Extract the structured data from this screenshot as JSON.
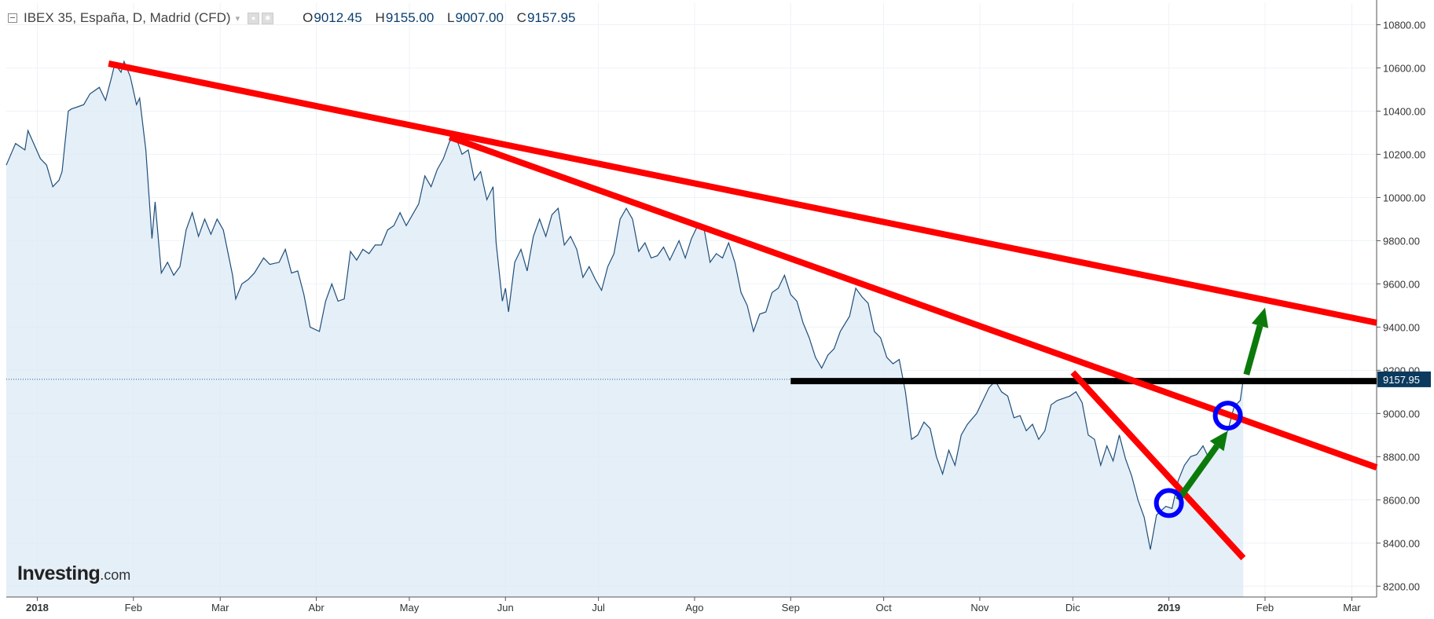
{
  "header": {
    "title": "IBEX 35, España, D, Madrid (CFD)",
    "dropdown": "▾",
    "open_label": "O",
    "open": "9012.45",
    "high_label": "H",
    "high": "9155.00",
    "low_label": "L",
    "low": "9007.00",
    "close_label": "C",
    "close": "9157.95"
  },
  "logo": {
    "brand": "Investing",
    "suffix": ".com"
  },
  "colors": {
    "area_fill": "#dce9f5",
    "price_line": "#1f4e79",
    "trendline": "#ff0000",
    "support": "#000000",
    "arrows": "#0b7a0b",
    "circles": "#0000ff",
    "price_tag": "#0b3a5e"
  },
  "chart_data": {
    "type": "area",
    "title": "IBEX 35, España, D, Madrid (CFD)",
    "xlabel": "",
    "ylabel": "",
    "ylim": [
      8150,
      10900
    ],
    "y_ticks": [
      8200,
      8400,
      8600,
      8800,
      9000,
      9200,
      9400,
      9600,
      9800,
      10000,
      10200,
      10400,
      10600,
      10800
    ],
    "y_tick_labels": [
      "8200.00",
      "8400.00",
      "8600.00",
      "8800.00",
      "9000.00",
      "9200.00",
      "9400.00",
      "9600.00",
      "9800.00",
      "10000.00",
      "10200.00",
      "10400.00",
      "10600.00",
      "10800.00"
    ],
    "x_ticks": [
      {
        "label": "2018",
        "date": "2018-01-01",
        "bold": true
      },
      {
        "label": "Feb",
        "date": "2018-02-01"
      },
      {
        "label": "Mar",
        "date": "2018-03-01"
      },
      {
        "label": "Abr",
        "date": "2018-04-01"
      },
      {
        "label": "May",
        "date": "2018-05-01"
      },
      {
        "label": "Jun",
        "date": "2018-06-01"
      },
      {
        "label": "Jul",
        "date": "2018-07-01"
      },
      {
        "label": "Ago",
        "date": "2018-08-01"
      },
      {
        "label": "Sep",
        "date": "2018-09-01"
      },
      {
        "label": "Oct",
        "date": "2018-10-01"
      },
      {
        "label": "Nov",
        "date": "2018-11-01"
      },
      {
        "label": "Dic",
        "date": "2018-12-01"
      },
      {
        "label": "2019",
        "date": "2019-01-01",
        "bold": true
      },
      {
        "label": "Feb",
        "date": "2019-02-01"
      },
      {
        "label": "Mar",
        "date": "2019-03-01"
      }
    ],
    "xlim": [
      "2017-12-22",
      "2019-03-09"
    ],
    "grid": true,
    "last_price": 9157.95,
    "last_price_label": "9157.95",
    "series": [
      {
        "values": [
          [
            "2017-12-22",
            10150
          ],
          [
            "2017-12-25",
            10250
          ],
          [
            "2017-12-28",
            10220
          ],
          [
            "2017-12-29",
            10310
          ],
          [
            "2018-01-02",
            10180
          ],
          [
            "2018-01-04",
            10150
          ],
          [
            "2018-01-06",
            10050
          ],
          [
            "2018-01-08",
            10080
          ],
          [
            "2018-01-09",
            10120
          ],
          [
            "2018-01-11",
            10400
          ],
          [
            "2018-01-12",
            10410
          ],
          [
            "2018-01-14",
            10420
          ],
          [
            "2018-01-16",
            10430
          ],
          [
            "2018-01-18",
            10480
          ],
          [
            "2018-01-21",
            10510
          ],
          [
            "2018-01-23",
            10450
          ],
          [
            "2018-01-25",
            10560
          ],
          [
            "2018-01-26",
            10620
          ],
          [
            "2018-01-28",
            10580
          ],
          [
            "2018-01-29",
            10630
          ],
          [
            "2018-01-31",
            10560
          ],
          [
            "2018-02-02",
            10430
          ],
          [
            "2018-02-03",
            10460
          ],
          [
            "2018-02-05",
            10220
          ],
          [
            "2018-02-07",
            9810
          ],
          [
            "2018-02-08",
            9980
          ],
          [
            "2018-02-10",
            9650
          ],
          [
            "2018-02-12",
            9700
          ],
          [
            "2018-02-14",
            9640
          ],
          [
            "2018-02-16",
            9680
          ],
          [
            "2018-02-18",
            9850
          ],
          [
            "2018-02-20",
            9930
          ],
          [
            "2018-02-22",
            9820
          ],
          [
            "2018-02-24",
            9900
          ],
          [
            "2018-02-26",
            9830
          ],
          [
            "2018-02-28",
            9900
          ],
          [
            "2018-03-02",
            9850
          ],
          [
            "2018-03-05",
            9640
          ],
          [
            "2018-03-06",
            9530
          ],
          [
            "2018-03-08",
            9600
          ],
          [
            "2018-03-10",
            9620
          ],
          [
            "2018-03-12",
            9650
          ],
          [
            "2018-03-15",
            9720
          ],
          [
            "2018-03-17",
            9690
          ],
          [
            "2018-03-20",
            9700
          ],
          [
            "2018-03-22",
            9760
          ],
          [
            "2018-03-24",
            9650
          ],
          [
            "2018-03-26",
            9660
          ],
          [
            "2018-03-28",
            9550
          ],
          [
            "2018-03-30",
            9400
          ],
          [
            "2018-04-02",
            9380
          ],
          [
            "2018-04-04",
            9520
          ],
          [
            "2018-04-06",
            9600
          ],
          [
            "2018-04-08",
            9520
          ],
          [
            "2018-04-10",
            9530
          ],
          [
            "2018-04-12",
            9750
          ],
          [
            "2018-04-14",
            9710
          ],
          [
            "2018-04-16",
            9760
          ],
          [
            "2018-04-18",
            9740
          ],
          [
            "2018-04-20",
            9780
          ],
          [
            "2018-04-22",
            9780
          ],
          [
            "2018-04-24",
            9850
          ],
          [
            "2018-04-26",
            9870
          ],
          [
            "2018-04-28",
            9930
          ],
          [
            "2018-04-30",
            9870
          ],
          [
            "2018-05-02",
            9920
          ],
          [
            "2018-05-04",
            9970
          ],
          [
            "2018-05-06",
            10100
          ],
          [
            "2018-05-08",
            10050
          ],
          [
            "2018-05-10",
            10130
          ],
          [
            "2018-05-12",
            10180
          ],
          [
            "2018-05-14",
            10260
          ],
          [
            "2018-05-16",
            10280
          ],
          [
            "2018-05-18",
            10200
          ],
          [
            "2018-05-20",
            10220
          ],
          [
            "2018-05-22",
            10080
          ],
          [
            "2018-05-24",
            10120
          ],
          [
            "2018-05-26",
            9990
          ],
          [
            "2018-05-28",
            10050
          ],
          [
            "2018-05-29",
            9790
          ],
          [
            "2018-05-31",
            9520
          ],
          [
            "2018-06-01",
            9580
          ],
          [
            "2018-06-02",
            9470
          ],
          [
            "2018-06-04",
            9700
          ],
          [
            "2018-06-06",
            9760
          ],
          [
            "2018-06-08",
            9660
          ],
          [
            "2018-06-10",
            9820
          ],
          [
            "2018-06-12",
            9900
          ],
          [
            "2018-06-14",
            9820
          ],
          [
            "2018-06-16",
            9920
          ],
          [
            "2018-06-18",
            9950
          ],
          [
            "2018-06-20",
            9780
          ],
          [
            "2018-06-22",
            9820
          ],
          [
            "2018-06-24",
            9760
          ],
          [
            "2018-06-26",
            9630
          ],
          [
            "2018-06-28",
            9680
          ],
          [
            "2018-06-30",
            9620
          ],
          [
            "2018-07-02",
            9570
          ],
          [
            "2018-07-04",
            9680
          ],
          [
            "2018-07-06",
            9740
          ],
          [
            "2018-07-08",
            9900
          ],
          [
            "2018-07-10",
            9950
          ],
          [
            "2018-07-12",
            9900
          ],
          [
            "2018-07-14",
            9750
          ],
          [
            "2018-07-16",
            9790
          ],
          [
            "2018-07-18",
            9720
          ],
          [
            "2018-07-20",
            9730
          ],
          [
            "2018-07-22",
            9770
          ],
          [
            "2018-07-24",
            9710
          ],
          [
            "2018-07-27",
            9800
          ],
          [
            "2018-07-29",
            9720
          ],
          [
            "2018-07-31",
            9810
          ],
          [
            "2018-08-02",
            9870
          ],
          [
            "2018-08-04",
            9860
          ],
          [
            "2018-08-06",
            9700
          ],
          [
            "2018-08-08",
            9740
          ],
          [
            "2018-08-10",
            9720
          ],
          [
            "2018-08-12",
            9790
          ],
          [
            "2018-08-14",
            9700
          ],
          [
            "2018-08-16",
            9560
          ],
          [
            "2018-08-18",
            9500
          ],
          [
            "2018-08-20",
            9380
          ],
          [
            "2018-08-22",
            9460
          ],
          [
            "2018-08-24",
            9470
          ],
          [
            "2018-08-26",
            9560
          ],
          [
            "2018-08-28",
            9580
          ],
          [
            "2018-08-30",
            9640
          ],
          [
            "2018-09-01",
            9550
          ],
          [
            "2018-09-03",
            9520
          ],
          [
            "2018-09-05",
            9420
          ],
          [
            "2018-09-07",
            9350
          ],
          [
            "2018-09-09",
            9260
          ],
          [
            "2018-09-11",
            9210
          ],
          [
            "2018-09-13",
            9270
          ],
          [
            "2018-09-15",
            9300
          ],
          [
            "2018-09-17",
            9380
          ],
          [
            "2018-09-20",
            9450
          ],
          [
            "2018-09-22",
            9580
          ],
          [
            "2018-09-24",
            9540
          ],
          [
            "2018-09-26",
            9510
          ],
          [
            "2018-09-28",
            9380
          ],
          [
            "2018-09-30",
            9350
          ],
          [
            "2018-10-02",
            9260
          ],
          [
            "2018-10-04",
            9230
          ],
          [
            "2018-10-06",
            9250
          ],
          [
            "2018-10-08",
            9100
          ],
          [
            "2018-10-10",
            8880
          ],
          [
            "2018-10-12",
            8900
          ],
          [
            "2018-10-14",
            8960
          ],
          [
            "2018-10-16",
            8930
          ],
          [
            "2018-10-18",
            8800
          ],
          [
            "2018-10-20",
            8720
          ],
          [
            "2018-10-22",
            8830
          ],
          [
            "2018-10-24",
            8760
          ],
          [
            "2018-10-26",
            8900
          ],
          [
            "2018-10-28",
            8950
          ],
          [
            "2018-10-31",
            9000
          ],
          [
            "2018-11-02",
            9060
          ],
          [
            "2018-11-04",
            9120
          ],
          [
            "2018-11-06",
            9150
          ],
          [
            "2018-11-08",
            9100
          ],
          [
            "2018-11-10",
            9080
          ],
          [
            "2018-11-12",
            8980
          ],
          [
            "2018-11-14",
            8990
          ],
          [
            "2018-11-16",
            8920
          ],
          [
            "2018-11-18",
            8950
          ],
          [
            "2018-11-20",
            8880
          ],
          [
            "2018-11-22",
            8920
          ],
          [
            "2018-11-24",
            9040
          ],
          [
            "2018-11-26",
            9060
          ],
          [
            "2018-11-28",
            9070
          ],
          [
            "2018-11-30",
            9080
          ],
          [
            "2018-12-02",
            9100
          ],
          [
            "2018-12-04",
            9050
          ],
          [
            "2018-12-06",
            8900
          ],
          [
            "2018-12-08",
            8880
          ],
          [
            "2018-12-10",
            8760
          ],
          [
            "2018-12-12",
            8850
          ],
          [
            "2018-12-14",
            8780
          ],
          [
            "2018-12-16",
            8900
          ],
          [
            "2018-12-18",
            8790
          ],
          [
            "2018-12-20",
            8710
          ],
          [
            "2018-12-22",
            8600
          ],
          [
            "2018-12-24",
            8520
          ],
          [
            "2018-12-26",
            8370
          ],
          [
            "2018-12-28",
            8530
          ],
          [
            "2018-12-31",
            8570
          ],
          [
            "2019-01-02",
            8560
          ],
          [
            "2019-01-04",
            8690
          ],
          [
            "2019-01-06",
            8760
          ],
          [
            "2019-01-08",
            8800
          ],
          [
            "2019-01-10",
            8810
          ],
          [
            "2019-01-12",
            8850
          ],
          [
            "2019-01-14",
            8790
          ],
          [
            "2019-01-16",
            8840
          ],
          [
            "2019-01-18",
            8880
          ],
          [
            "2019-01-20",
            8920
          ],
          [
            "2019-01-22",
            9030
          ],
          [
            "2019-01-24",
            9060
          ],
          [
            "2019-01-25",
            9157.95
          ]
        ]
      }
    ],
    "annotations": {
      "trendlines": [
        {
          "from": [
            "2018-01-24",
            10620
          ],
          "to": [
            "2019-03-09",
            9420
          ]
        },
        {
          "from": [
            "2018-05-14",
            10280
          ],
          "to": [
            "2019-03-09",
            8750
          ]
        },
        {
          "from": [
            "2018-12-01",
            9190
          ],
          "to": [
            "2019-01-25",
            8330
          ]
        }
      ],
      "support_line": {
        "from": [
          "2018-09-01",
          9150
        ],
        "to": [
          "2019-03-09",
          9150
        ]
      },
      "circles": [
        [
          "2019-01-01",
          8585
        ],
        [
          "2019-01-20",
          8990
        ]
      ],
      "arrows": [
        {
          "from": [
            "2019-01-04",
            8600
          ],
          "to": [
            "2019-01-20",
            8920
          ]
        },
        {
          "from": [
            "2019-01-26",
            9180
          ],
          "to": [
            "2019-02-01",
            9490
          ]
        }
      ]
    }
  }
}
